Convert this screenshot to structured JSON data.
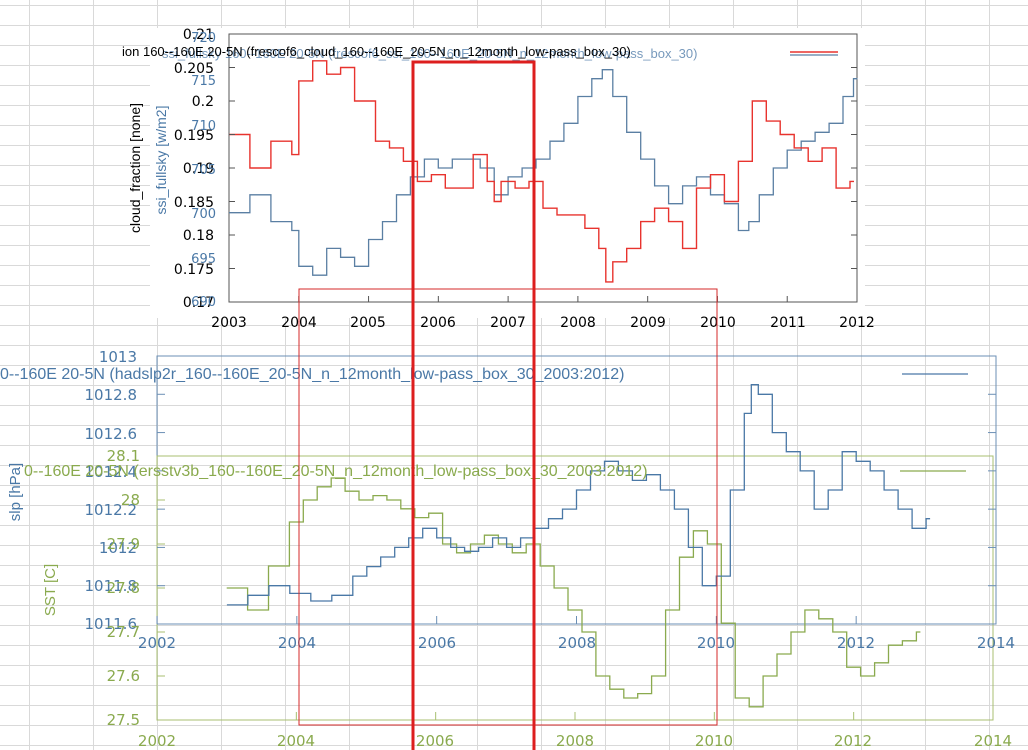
{
  "chart_data": [
    {
      "type": "line",
      "legend": "ion 160--160E 20-5N (frescof6_cloud_160--160E_20-5N_n_12month_low-pass_box_30)",
      "legend_ghost": "ssi_fullsky 160--160E 20-5N (frescof6_ssi_160--160E_20-5N_n_12month_low-pass_box_30)",
      "ylabel_left": "cloud_fraction [none]",
      "ylabel_right": "ssi_fullsky [w/m2]",
      "x_ticks": [
        "2003",
        "2004",
        "2005",
        "2006",
        "2007",
        "2008",
        "2009",
        "2010",
        "2011",
        "2012"
      ],
      "y_ticks_left": [
        "0.17",
        "0.175",
        "0.18",
        "0.185",
        "0.19",
        "0.195",
        "0.2",
        "0.205",
        "0.21"
      ],
      "y_ticks_right": [
        "690",
        "695",
        "700",
        "705",
        "710",
        "715",
        "720"
      ],
      "xlim": [
        2003,
        2012
      ],
      "ylim_left": [
        0.17,
        0.21
      ],
      "ylim_right": [
        690,
        720
      ],
      "colors": {
        "cloud": "#e8332e",
        "ssi": "#5a7fa3"
      },
      "series": [
        {
          "name": "ion 160--160E 20-5N (frescof6_cloud_160--160E_20-5N_n_12month_low-pass_box_30)",
          "axis": "left",
          "x": [
            2003.0,
            2003.3,
            2003.6,
            2003.9,
            2004.0,
            2004.2,
            2004.4,
            2004.6,
            2004.8,
            2004.95,
            2005.1,
            2005.3,
            2005.5,
            2005.7,
            2005.9,
            2006.1,
            2006.3,
            2006.5,
            2006.7,
            2006.8,
            2006.9,
            2007.1,
            2007.3,
            2007.5,
            2007.7,
            2007.9,
            2008.1,
            2008.3,
            2008.4,
            2008.5,
            2008.7,
            2008.9,
            2009.1,
            2009.3,
            2009.5,
            2009.7,
            2009.9,
            2010.1,
            2010.3,
            2010.5,
            2010.7,
            2010.9,
            2011.1,
            2011.3,
            2011.5,
            2011.7,
            2011.9
          ],
          "y": [
            0.195,
            0.19,
            0.194,
            0.192,
            0.203,
            0.206,
            0.204,
            0.205,
            0.2,
            0.2,
            0.194,
            0.193,
            0.191,
            0.188,
            0.189,
            0.187,
            0.187,
            0.192,
            0.188,
            0.185,
            0.188,
            0.187,
            0.188,
            0.184,
            0.183,
            0.183,
            0.181,
            0.178,
            0.173,
            0.176,
            0.178,
            0.182,
            0.184,
            0.182,
            0.178,
            0.187,
            0.189,
            0.185,
            0.191,
            0.2,
            0.197,
            0.195,
            0.193,
            0.191,
            0.193,
            0.187,
            0.188
          ]
        },
        {
          "name": "ssi_fullsky 160--160E 20-5N (frescof6_ssi_160--160E_20-5N_n_12month_low-pass_box_30)",
          "axis": "right",
          "x": [
            2003.0,
            2003.3,
            2003.6,
            2003.9,
            2004.0,
            2004.2,
            2004.4,
            2004.6,
            2004.8,
            2005.0,
            2005.2,
            2005.4,
            2005.6,
            2005.8,
            2006.0,
            2006.2,
            2006.4,
            2006.6,
            2006.8,
            2007.0,
            2007.2,
            2007.4,
            2007.6,
            2007.8,
            2008.0,
            2008.2,
            2008.35,
            2008.5,
            2008.7,
            2008.9,
            2009.1,
            2009.3,
            2009.5,
            2009.7,
            2009.9,
            2010.1,
            2010.3,
            2010.45,
            2010.6,
            2010.8,
            2011.0,
            2011.2,
            2011.4,
            2011.6,
            2011.8,
            2011.95
          ],
          "y": [
            700,
            702,
            699,
            698,
            694,
            693,
            696,
            695,
            694,
            697,
            699,
            702,
            704,
            706,
            705,
            706,
            706,
            705,
            702,
            704,
            705,
            706,
            708,
            710,
            713,
            715,
            716,
            713,
            709,
            706,
            703,
            701,
            703,
            704,
            702,
            701,
            698,
            699,
            702,
            705,
            707,
            708,
            709,
            710,
            713,
            715
          ]
        }
      ]
    },
    {
      "type": "line",
      "legend": "0--160E 20-5N (hadslp2r_160--160E_20-5N_n_12month_low-pass_box_30_2003:2012)",
      "ylabel": "slp [hPa]",
      "x_ticks": [
        "2002",
        "2004",
        "2006",
        "2008",
        "2010",
        "2012",
        "2014"
      ],
      "y_ticks": [
        "1011.6",
        "1011.8",
        "1012",
        "1012.2",
        "1012.4",
        "1012.6",
        "1012.8",
        "1013"
      ],
      "xlim": [
        2002,
        2014
      ],
      "ylim": [
        1011.6,
        1013
      ],
      "color": "#4a78a6",
      "series": [
        {
          "name": "0--160E 20-5N (hadslp2r_160--160E_20-5N_n_12month_low-pass_box_30_2003:2012)",
          "x": [
            2003.0,
            2003.3,
            2003.6,
            2003.9,
            2004.2,
            2004.5,
            2004.8,
            2005.0,
            2005.2,
            2005.4,
            2005.6,
            2005.8,
            2006.0,
            2006.2,
            2006.4,
            2006.6,
            2006.8,
            2007.0,
            2007.2,
            2007.4,
            2007.6,
            2007.8,
            2008.0,
            2008.2,
            2008.4,
            2008.6,
            2008.8,
            2009.0,
            2009.2,
            2009.4,
            2009.6,
            2009.8,
            2010.0,
            2010.2,
            2010.4,
            2010.5,
            2010.6,
            2010.8,
            2011.0,
            2011.2,
            2011.4,
            2011.6,
            2011.8,
            2012.0,
            2012.2,
            2012.4,
            2012.6,
            2012.8,
            2013.0
          ],
          "y": [
            1011.7,
            1011.75,
            1011.8,
            1011.76,
            1011.72,
            1011.75,
            1011.85,
            1011.9,
            1011.95,
            1012.0,
            1012.05,
            1012.1,
            1012.05,
            1012.0,
            1011.98,
            1012.0,
            1012.05,
            1012.0,
            1012.05,
            1012.1,
            1012.15,
            1012.2,
            1012.3,
            1012.4,
            1012.45,
            1012.4,
            1012.35,
            1012.38,
            1012.3,
            1012.2,
            1012.0,
            1011.8,
            1011.85,
            1012.3,
            1012.7,
            1012.85,
            1012.8,
            1012.6,
            1012.5,
            1012.4,
            1012.2,
            1012.3,
            1012.5,
            1012.45,
            1012.4,
            1012.3,
            1012.2,
            1012.1,
            1012.15
          ]
        }
      ]
    },
    {
      "type": "line",
      "legend": "0--160E 20-5N (ersstv3b_160--160E_20-5N_n_12month_low-pass_box_30_2003:2012)",
      "ylabel": "SST [C]",
      "x_ticks": [
        "2002",
        "2004",
        "2006",
        "2008",
        "2010",
        "2012",
        "2014"
      ],
      "y_ticks": [
        "27.5",
        "27.6",
        "27.7",
        "27.8",
        "27.9",
        "28",
        "28.1"
      ],
      "xlim": [
        2002,
        2014
      ],
      "ylim": [
        27.5,
        28.1
      ],
      "color": "#8aaa4e",
      "series": [
        {
          "name": "0--160E 20-5N (ersstv3b_160--160E_20-5N_n_12month_low-pass_box_30_2003:2012)",
          "x": [
            2003.0,
            2003.3,
            2003.6,
            2003.9,
            2004.1,
            2004.3,
            2004.5,
            2004.7,
            2004.9,
            2005.1,
            2005.3,
            2005.5,
            2005.7,
            2005.9,
            2006.1,
            2006.3,
            2006.5,
            2006.7,
            2006.9,
            2007.1,
            2007.3,
            2007.5,
            2007.7,
            2007.9,
            2008.1,
            2008.3,
            2008.5,
            2008.7,
            2008.9,
            2009.1,
            2009.3,
            2009.5,
            2009.7,
            2009.9,
            2010.1,
            2010.3,
            2010.5,
            2010.7,
            2010.9,
            2011.1,
            2011.3,
            2011.5,
            2011.7,
            2011.9,
            2012.1,
            2012.3,
            2012.5,
            2012.7,
            2012.9
          ],
          "y": [
            27.8,
            27.75,
            27.85,
            27.95,
            28.0,
            28.03,
            28.05,
            28.02,
            28.0,
            28.01,
            28.0,
            27.98,
            27.96,
            27.97,
            27.9,
            27.88,
            27.9,
            27.92,
            27.9,
            27.88,
            27.9,
            27.85,
            27.8,
            27.75,
            27.7,
            27.6,
            27.57,
            27.55,
            27.56,
            27.6,
            27.75,
            27.87,
            27.93,
            27.9,
            27.72,
            27.55,
            27.53,
            27.6,
            27.65,
            27.7,
            27.75,
            27.73,
            27.7,
            27.62,
            27.6,
            27.63,
            27.67,
            27.68,
            27.7
          ]
        }
      ]
    }
  ]
}
